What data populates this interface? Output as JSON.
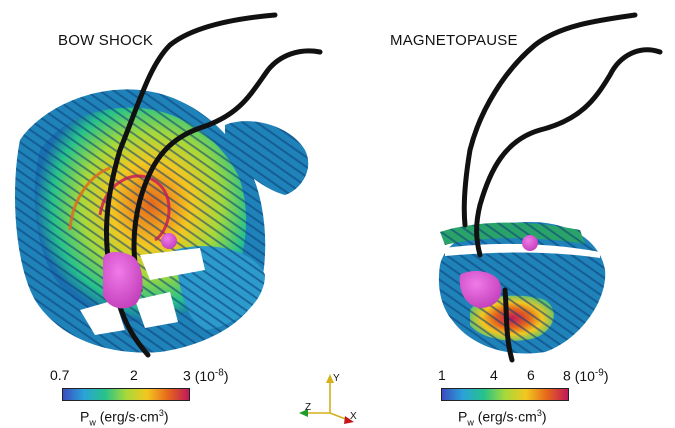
{
  "panels": {
    "left": {
      "title": "BOW SHOCK"
    },
    "right": {
      "title": "MAGNETOPAUSE"
    }
  },
  "colorbars": {
    "left": {
      "ticks": [
        "0.7",
        "2",
        "3"
      ],
      "exponent": "(10",
      "exponent_power": "-8",
      "label_main": "P",
      "label_sub": "w",
      "label_units": "(erg/s·cm",
      "label_units_power": "3",
      "colors": [
        "#3b4cc0",
        "#2aa3d8",
        "#27c28a",
        "#a6d93a",
        "#f3c720",
        "#e6671b",
        "#c0185a"
      ]
    },
    "right": {
      "ticks": [
        "1",
        "4",
        "6",
        "8"
      ],
      "exponent": "(10",
      "exponent_power": "-9",
      "label_main": "P",
      "label_sub": "w",
      "label_units": "(erg/s·cm",
      "label_units_power": "3",
      "colors": [
        "#3b4cc0",
        "#2aa3d8",
        "#27c28a",
        "#a6d93a",
        "#f3c720",
        "#e6671b",
        "#c0185a"
      ]
    }
  },
  "axes_triad": {
    "x": "X",
    "y": "Y",
    "z": "Z"
  }
}
